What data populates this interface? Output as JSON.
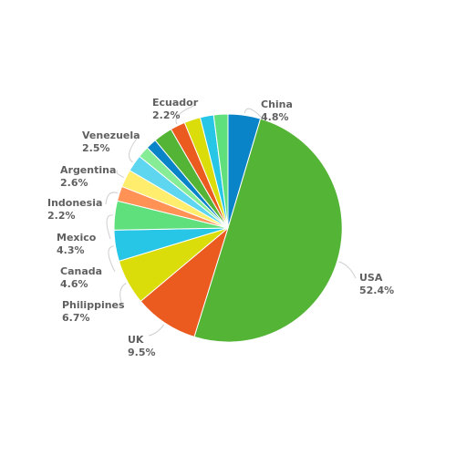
{
  "chart_data": {
    "type": "pie",
    "title": "",
    "slices": [
      {
        "label": "China",
        "value": 4.8,
        "value_label": "4.8%",
        "color": "#0a84c8"
      },
      {
        "label": "USA",
        "value": 52.4,
        "value_label": "52.4%",
        "color": "#54b435"
      },
      {
        "label": "UK",
        "value": 9.5,
        "value_label": "9.5%",
        "color": "#eb5a1e"
      },
      {
        "label": "Philippines",
        "value": 6.7,
        "value_label": "6.7%",
        "color": "#dbdd0a"
      },
      {
        "label": "Canada",
        "value": 4.6,
        "value_label": "4.6%",
        "color": "#28c6e6"
      },
      {
        "label": "Mexico",
        "value": 4.3,
        "value_label": "4.3%",
        "color": "#60e07c"
      },
      {
        "label": "Indonesia",
        "value": 2.2,
        "value_label": "2.2%",
        "color": "#ff9254"
      },
      {
        "label": "Argentina",
        "value": 2.6,
        "value_label": "2.6%",
        "color": "#ffee6e"
      },
      {
        "label": "Venezuela",
        "value": 2.5,
        "value_label": "2.5%",
        "color": "#5fd6f0"
      },
      {
        "label": "",
        "value": 1.7,
        "value_label": "",
        "color": "#86ec96"
      },
      {
        "label": "",
        "value": 1.6,
        "value_label": "",
        "color": "#0a84c8"
      },
      {
        "label": "",
        "value": 2.8,
        "value_label": "",
        "color": "#54b435"
      },
      {
        "label": "Ecuador",
        "value": 2.2,
        "value_label": "2.2%",
        "color": "#eb5a1e"
      },
      {
        "label": "",
        "value": 2.4,
        "value_label": "",
        "color": "#dbdd0a"
      },
      {
        "label": "",
        "value": 2.0,
        "value_label": "",
        "color": "#28c6e6"
      },
      {
        "label": "",
        "value": 2.1,
        "value_label": "",
        "color": "#60e07c"
      }
    ]
  }
}
